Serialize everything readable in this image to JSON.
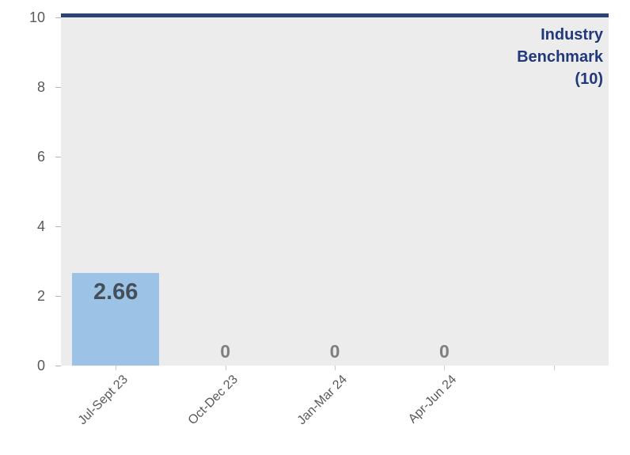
{
  "chart_data": {
    "type": "bar",
    "categories": [
      "Jul-Sept 23",
      "Oct-Dec 23",
      "Jan-Mar 24",
      "Apr-Jun 24"
    ],
    "values": [
      2.66,
      0,
      0,
      0
    ],
    "value_labels": [
      "2.66",
      "0",
      "0",
      "0"
    ],
    "y_ticks": [
      0,
      2,
      4,
      6,
      8,
      10
    ],
    "ylim": [
      0,
      10
    ],
    "slots": 5,
    "grid": true,
    "legend_position": "none",
    "benchmark": {
      "value": 10,
      "label_lines": [
        "Industry",
        "Benchmark",
        "(10)"
      ]
    },
    "colors": {
      "bar": "#9CC3E6",
      "bar_label": "#454F59",
      "zero_label": "#7F7F7F",
      "benchmark_line": "#2B4278",
      "benchmark_text": "#21397B",
      "plot_bg": "#ECECEC",
      "gridline": "#BFBFBF",
      "axis_text": "#595959"
    }
  }
}
